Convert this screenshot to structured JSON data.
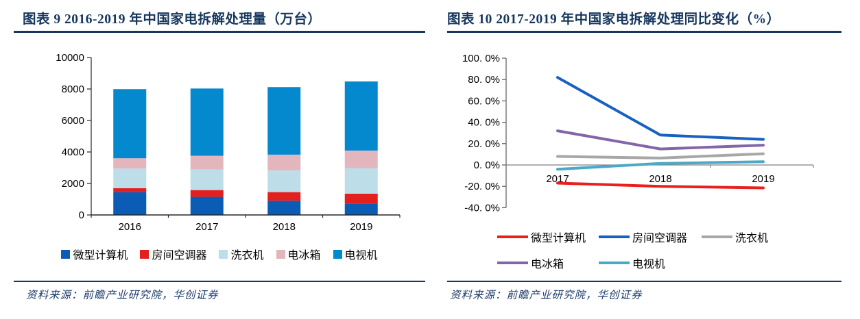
{
  "page": {
    "background": "#ffffff",
    "accent_navy": "#17375E"
  },
  "figure9": {
    "title": "图表 9  2016-2019 年中国家电拆解处理量（万台）",
    "source": "资料来源：前瞻产业研究院，华创证券",
    "chart_data": {
      "type": "bar",
      "stacked": true,
      "categories": [
        "2016",
        "2017",
        "2018",
        "2019"
      ],
      "series": [
        {
          "name": "微型计算机",
          "color": "#0B5CB5",
          "values": [
            1450,
            1150,
            900,
            700
          ]
        },
        {
          "name": "房间空调器",
          "color": "#E3201F",
          "values": [
            250,
            430,
            550,
            650
          ]
        },
        {
          "name": "洗衣机",
          "color": "#BDDDE8",
          "values": [
            1250,
            1300,
            1380,
            1620
          ]
        },
        {
          "name": "电冰箱",
          "color": "#E2B6BC",
          "values": [
            650,
            880,
            1000,
            1120
          ]
        },
        {
          "name": "电视机",
          "color": "#0489CE",
          "values": [
            4390,
            4270,
            4290,
            4390
          ]
        }
      ],
      "totals": [
        7990,
        8030,
        8120,
        8480
      ],
      "ylim": [
        0,
        10000
      ],
      "yticks": [
        0,
        2000,
        4000,
        6000,
        8000,
        10000
      ],
      "grid": false,
      "legend_position": "bottom"
    }
  },
  "figure10": {
    "title": "图表 10  2017-2019 年中国家电拆解处理同比变化（%）",
    "source": "资料来源：前瞻产业研究院，华创证券",
    "chart_data": {
      "type": "line",
      "x": [
        "2017",
        "2018",
        "2019"
      ],
      "series": [
        {
          "name": "微型计算机",
          "color": "#E8201E",
          "values": [
            -17,
            -20,
            -21.5
          ]
        },
        {
          "name": "房间空调器",
          "color": "#1961BE",
          "values": [
            82,
            28,
            24
          ]
        },
        {
          "name": "洗衣机",
          "color": "#A7A7A7",
          "values": [
            8,
            6.5,
            10.5
          ]
        },
        {
          "name": "电冰箱",
          "color": "#8465A8",
          "values": [
            32,
            15,
            18.5
          ]
        },
        {
          "name": "电视机",
          "color": "#4AA9C6",
          "values": [
            -4,
            1.5,
            3
          ]
        }
      ],
      "ylim": [
        -40,
        100
      ],
      "ytick_values": [
        100,
        80,
        60,
        40,
        20,
        0,
        -20,
        -40
      ],
      "ytick_labels": [
        "100. 0%",
        "80. 0%",
        "60. 0%",
        "40. 0%",
        "20. 0%",
        "0. 0%",
        "-20. 0%",
        "-40. 0%"
      ],
      "grid": false,
      "legend_position": "bottom",
      "legend_rows": [
        [
          "微型计算机",
          "房间空调器",
          "洗衣机"
        ],
        [
          "电冰箱",
          "电视机"
        ]
      ]
    }
  }
}
